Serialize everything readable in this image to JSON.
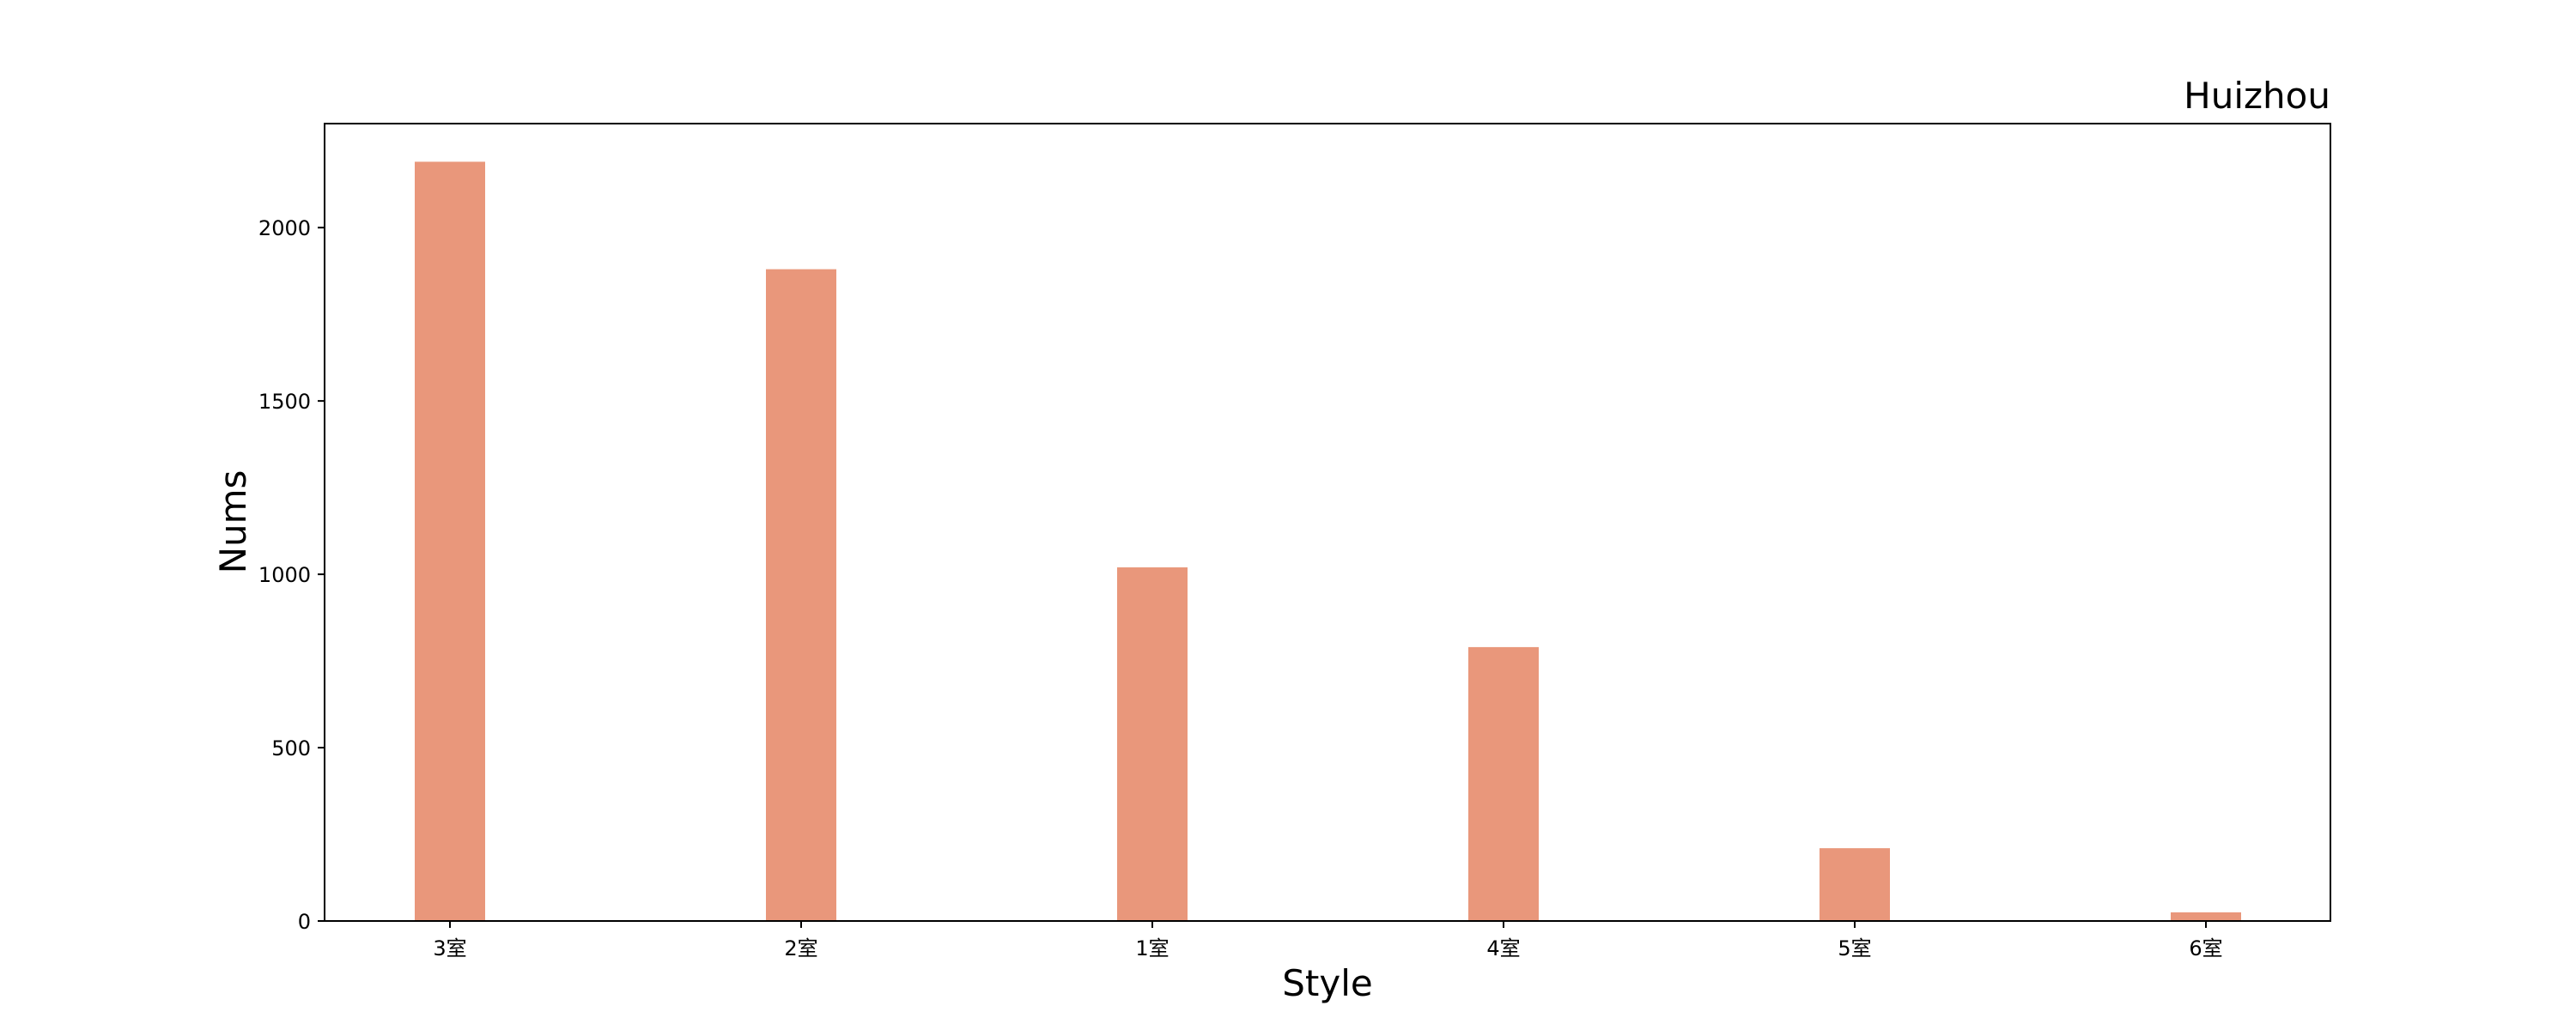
{
  "chart_data": {
    "type": "bar",
    "title": "Huizhou",
    "xlabel": "Style",
    "ylabel": "Nums",
    "categories": [
      "3室",
      "2室",
      "1室",
      "4室",
      "5室",
      "6室"
    ],
    "values": [
      2190,
      1880,
      1020,
      790,
      210,
      25
    ],
    "ylim": [
      0,
      2300
    ],
    "yticks": [
      0,
      500,
      1000,
      1500,
      2000
    ],
    "bar_color": "#E9977B",
    "grid": false,
    "legend": "none"
  }
}
